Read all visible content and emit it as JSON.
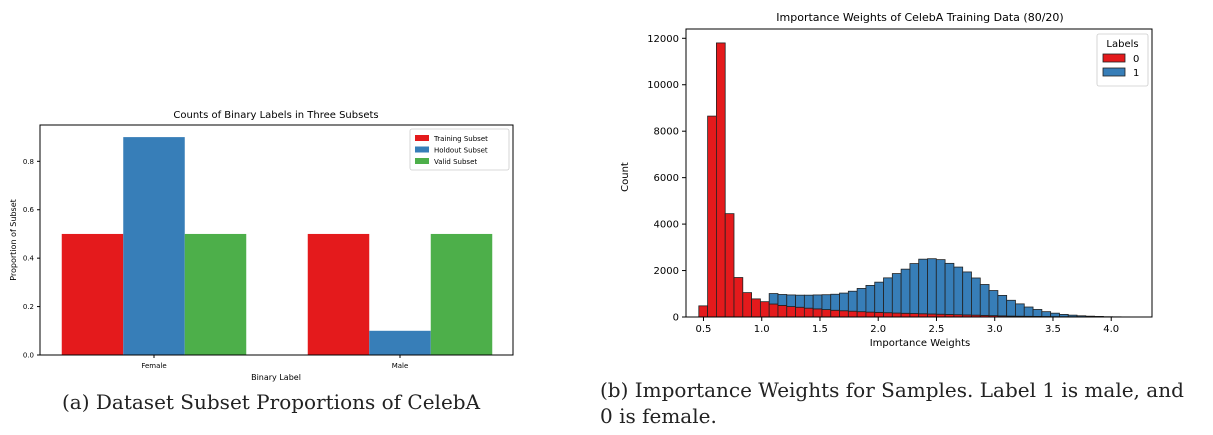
{
  "figure_a": {
    "caption": "(a) Dataset Subset Proportions of CelebA",
    "chart_data": {
      "type": "bar",
      "title": "Counts of Binary Labels in Three Subsets",
      "xlabel": "Binary Label",
      "ylabel": "Proportion of Subset",
      "categories": [
        "Female",
        "Male"
      ],
      "ylim": [
        0,
        0.95
      ],
      "yticks": [
        0.0,
        0.2,
        0.4,
        0.6,
        0.8
      ],
      "ytick_labels": [
        "0.0",
        "0.2",
        "0.4",
        "0.6",
        "0.8"
      ],
      "legend_position": "top-right",
      "grid": false,
      "series": [
        {
          "name": "Training Subset",
          "color": "#e41a1c",
          "values": [
            0.5,
            0.5
          ]
        },
        {
          "name": "Holdout Subset",
          "color": "#377eb8",
          "values": [
            0.9,
            0.1
          ]
        },
        {
          "name": "Valid Subset",
          "color": "#4daf4a",
          "values": [
            0.5,
            0.5
          ]
        }
      ]
    }
  },
  "figure_b": {
    "caption_line1": "(b) Importance Weights for Samples. Label 1 is male, and",
    "caption_line2": "0 is female.",
    "chart_data": {
      "type": "bar",
      "subtype": "stacked histogram",
      "title": "Importance Weights of CelebA Training Data (80/20)",
      "xlabel": "Importance Weights",
      "ylabel": "Count",
      "xlim": [
        0.35,
        4.35
      ],
      "ylim": [
        0,
        12400
      ],
      "xticks": [
        0.5,
        1.0,
        1.5,
        2.0,
        2.5,
        3.0,
        3.5,
        4.0
      ],
      "xtick_labels": [
        "0.5",
        "1.0",
        "1.5",
        "2.0",
        "2.5",
        "3.0",
        "3.5",
        "4.0"
      ],
      "yticks": [
        0,
        2000,
        4000,
        6000,
        8000,
        10000,
        12000
      ],
      "ytick_labels": [
        "0",
        "2000",
        "4000",
        "6000",
        "8000",
        "10000",
        "12000"
      ],
      "legend_title": "Labels",
      "legend_position": "top-right",
      "grid": false,
      "bin_start": 0.46,
      "bin_width": 0.0755,
      "series": [
        {
          "name": "0",
          "color": "#e41a1c",
          "counts": [
            480,
            8650,
            11800,
            4450,
            1700,
            1050,
            780,
            660,
            560,
            500,
            450,
            420,
            380,
            350,
            320,
            290,
            270,
            250,
            230,
            210,
            200,
            185,
            170,
            160,
            150,
            140,
            130,
            120,
            110,
            100,
            90,
            80,
            70,
            60,
            50,
            40,
            35,
            30,
            25,
            20,
            15,
            12,
            10,
            8,
            6,
            5,
            0,
            0,
            0,
            0
          ]
        },
        {
          "name": "1",
          "color": "#377eb8",
          "counts": [
            0,
            0,
            0,
            0,
            0,
            0,
            0,
            0,
            450,
            470,
            500,
            520,
            560,
            600,
            640,
            690,
            760,
            860,
            1000,
            1150,
            1300,
            1500,
            1700,
            1900,
            2150,
            2350,
            2380,
            2350,
            2200,
            2050,
            1850,
            1600,
            1330,
            1080,
            880,
            680,
            530,
            400,
            300,
            210,
            150,
            100,
            70,
            45,
            30,
            20,
            12,
            8,
            5,
            3
          ]
        }
      ]
    }
  }
}
